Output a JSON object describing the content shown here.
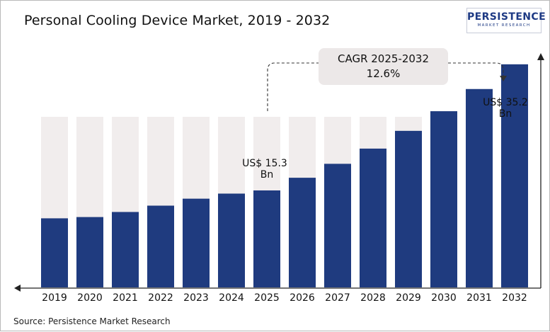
{
  "header": {
    "title": "Personal Cooling Device Market, 2019 - 2032"
  },
  "logo": {
    "name": "PERSISTENCE",
    "tagline": "MARKET RESEARCH"
  },
  "annotations": {
    "cagr_label": "CAGR 2025-2032",
    "cagr_value": "12.6%",
    "callout_2025": [
      "US$ 15.3",
      "Bn"
    ],
    "callout_2032": [
      "US$ 35.2",
      "Bn"
    ]
  },
  "footer": {
    "source": "Source: Persistence Market Research"
  },
  "colors": {
    "bar": "#1f3b7f",
    "bar_background": "#f1eded",
    "axis": "#222222",
    "cagr_box": "#ece8e8"
  },
  "chart_data": {
    "type": "bar",
    "title": "Personal Cooling Device Market, 2019 - 2032",
    "xlabel": "",
    "ylabel": "",
    "unit": "US$ Bn",
    "categories": [
      "2019",
      "2020",
      "2021",
      "2022",
      "2023",
      "2024",
      "2025",
      "2026",
      "2027",
      "2028",
      "2029",
      "2030",
      "2031",
      "2032"
    ],
    "values": [
      10.9,
      11.1,
      11.9,
      12.9,
      14.0,
      14.8,
      15.3,
      17.3,
      19.5,
      21.9,
      24.7,
      27.8,
      31.3,
      35.2
    ],
    "labeled_values": {
      "2025": "US$ 15.3 Bn",
      "2032": "US$ 35.2 Bn"
    },
    "ylim": [
      0,
      43
    ],
    "grid": false,
    "legend": "none"
  }
}
